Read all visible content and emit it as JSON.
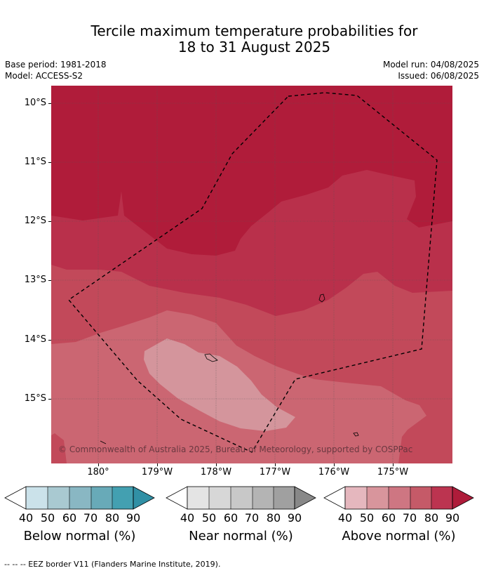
{
  "title": {
    "line1": "Tercile maximum temperature probabilities for",
    "line2": "18 to 31 August 2025"
  },
  "meta": {
    "base_period": "Base period: 1981-2018",
    "model": "Model: ACCESS-S2",
    "model_run": "Model run: 04/08/2025",
    "issued": "Issued: 06/08/2025"
  },
  "map": {
    "lat_labels": [
      "10°S",
      "11°S",
      "12°S",
      "13°S",
      "14°S",
      "15°S"
    ],
    "lon_labels": [
      "180°",
      "179°W",
      "178°W",
      "177°W",
      "176°W",
      "175°W"
    ],
    "copyright": "© Commonwealth of Australia 2025, Bureau of Meteorology, supported by COSPPac",
    "fill_colors": [
      "#b01c3a",
      "#b9304b",
      "#c2495a",
      "#cb6672",
      "#d4959c"
    ]
  },
  "colorbars": [
    {
      "title": "Below normal (%)",
      "values": [
        "40",
        "50",
        "60",
        "70",
        "80",
        "90"
      ],
      "colors": [
        "#ffffff",
        "#cbe2ea",
        "#a9c9d1",
        "#89b7c3",
        "#68aab8",
        "#43a0b1",
        "#3190a5"
      ]
    },
    {
      "title": "Near normal (%)",
      "values": [
        "40",
        "50",
        "60",
        "70",
        "80",
        "90"
      ],
      "colors": [
        "#ffffff",
        "#e4e4e4",
        "#d7d7d7",
        "#c8c8c8",
        "#b4b4b4",
        "#a0a0a0",
        "#888888"
      ]
    },
    {
      "title": "Above normal (%)",
      "values": [
        "40",
        "50",
        "60",
        "70",
        "80",
        "90"
      ],
      "colors": [
        "#ffffff",
        "#e5b7be",
        "#d8959c",
        "#ce7682",
        "#c55a68",
        "#bc3450",
        "#ae1c3a"
      ]
    }
  ],
  "footer": "--  --  -- EEZ border V11 (Flanders Marine Institute, 2019)."
}
